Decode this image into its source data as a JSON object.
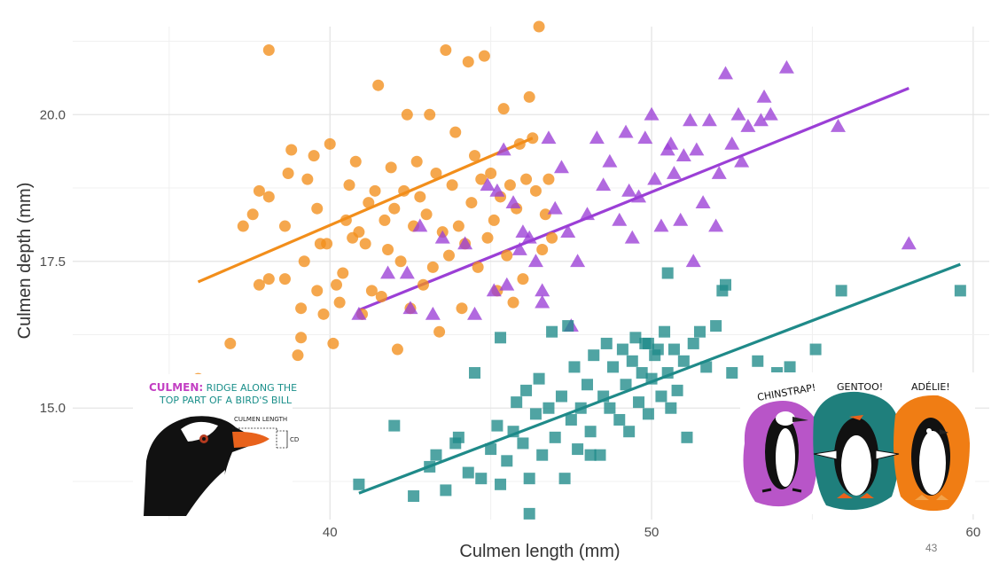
{
  "chart_data": {
    "type": "scatter",
    "xlabel": "Culmen length (mm)",
    "ylabel": "Culmen depth (mm)",
    "xlim": [
      32.0,
      60.5
    ],
    "ylim": [
      13.1,
      21.5
    ],
    "x_ticks": [
      40,
      50,
      60
    ],
    "x_tick_labels": [
      "40",
      "50",
      "60"
    ],
    "y_ticks": [
      15.0,
      17.5,
      20.0
    ],
    "y_tick_labels": [
      "15.0",
      "17.5",
      "20.0"
    ],
    "grid": true,
    "legend": "none",
    "series": [
      {
        "color": "#f28e1b",
        "marker": "circle",
        "trend": [
          [
            35.9,
            17.15
          ],
          [
            46.3,
            19.6
          ]
        ],
        "points": [
          [
            35.9,
            15.5
          ],
          [
            36.9,
            16.1
          ],
          [
            37.3,
            18.1
          ],
          [
            37.6,
            18.3
          ],
          [
            37.8,
            17.1
          ],
          [
            37.8,
            18.7
          ],
          [
            38.1,
            17.2
          ],
          [
            38.1,
            18.6
          ],
          [
            38.1,
            21.1
          ],
          [
            38.6,
            17.2
          ],
          [
            38.6,
            18.1
          ],
          [
            38.7,
            19.0
          ],
          [
            38.8,
            19.4
          ],
          [
            39.0,
            15.9
          ],
          [
            39.1,
            16.2
          ],
          [
            39.1,
            16.7
          ],
          [
            39.2,
            17.5
          ],
          [
            39.3,
            18.9
          ],
          [
            39.5,
            19.3
          ],
          [
            39.6,
            17.0
          ],
          [
            39.6,
            18.4
          ],
          [
            39.7,
            17.8
          ],
          [
            39.8,
            16.6
          ],
          [
            39.9,
            17.8
          ],
          [
            40.0,
            19.5
          ],
          [
            40.1,
            16.1
          ],
          [
            40.2,
            17.1
          ],
          [
            40.3,
            16.8
          ],
          [
            40.4,
            17.3
          ],
          [
            40.5,
            18.2
          ],
          [
            40.6,
            18.8
          ],
          [
            40.7,
            17.9
          ],
          [
            40.8,
            19.2
          ],
          [
            40.9,
            18.0
          ],
          [
            41.0,
            16.6
          ],
          [
            41.1,
            17.8
          ],
          [
            41.2,
            18.5
          ],
          [
            41.3,
            17.0
          ],
          [
            41.4,
            18.7
          ],
          [
            41.5,
            20.5
          ],
          [
            41.6,
            16.9
          ],
          [
            41.7,
            18.2
          ],
          [
            41.8,
            17.7
          ],
          [
            41.9,
            19.1
          ],
          [
            42.0,
            18.4
          ],
          [
            42.1,
            16.0
          ],
          [
            42.2,
            17.5
          ],
          [
            42.3,
            18.7
          ],
          [
            42.4,
            20.0
          ],
          [
            42.5,
            16.7
          ],
          [
            42.6,
            18.1
          ],
          [
            42.7,
            19.2
          ],
          [
            42.8,
            18.6
          ],
          [
            42.9,
            17.1
          ],
          [
            43.0,
            18.3
          ],
          [
            43.1,
            20.0
          ],
          [
            43.2,
            17.4
          ],
          [
            43.3,
            19.0
          ],
          [
            43.4,
            16.3
          ],
          [
            43.5,
            18.0
          ],
          [
            43.6,
            21.1
          ],
          [
            43.7,
            17.6
          ],
          [
            43.8,
            18.8
          ],
          [
            43.9,
            19.7
          ],
          [
            44.0,
            18.1
          ],
          [
            44.1,
            16.7
          ],
          [
            44.2,
            17.8
          ],
          [
            44.3,
            20.9
          ],
          [
            44.4,
            18.5
          ],
          [
            44.5,
            19.3
          ],
          [
            44.6,
            17.4
          ],
          [
            44.7,
            18.9
          ],
          [
            44.8,
            21.0
          ],
          [
            44.9,
            17.9
          ],
          [
            45.0,
            19.0
          ],
          [
            45.1,
            18.2
          ],
          [
            45.2,
            17.0
          ],
          [
            45.3,
            18.6
          ],
          [
            45.4,
            20.1
          ],
          [
            45.5,
            17.6
          ],
          [
            45.6,
            18.8
          ],
          [
            45.7,
            16.8
          ],
          [
            45.8,
            18.4
          ],
          [
            45.9,
            19.5
          ],
          [
            46.0,
            17.2
          ],
          [
            46.1,
            18.9
          ],
          [
            46.2,
            20.3
          ],
          [
            46.3,
            19.6
          ],
          [
            46.4,
            18.7
          ],
          [
            46.5,
            21.5
          ],
          [
            46.6,
            17.7
          ],
          [
            46.7,
            18.3
          ],
          [
            46.8,
            18.9
          ],
          [
            46.9,
            17.9
          ]
        ]
      },
      {
        "color": "#9b3fd6",
        "marker": "triangle",
        "trend": [
          [
            40.9,
            16.67
          ],
          [
            58.0,
            20.45
          ]
        ],
        "points": [
          [
            40.9,
            16.6
          ],
          [
            41.8,
            17.3
          ],
          [
            42.4,
            17.3
          ],
          [
            42.5,
            16.7
          ],
          [
            42.8,
            18.1
          ],
          [
            43.2,
            16.6
          ],
          [
            43.5,
            17.9
          ],
          [
            44.2,
            17.8
          ],
          [
            44.5,
            16.6
          ],
          [
            44.9,
            18.8
          ],
          [
            45.1,
            17.0
          ],
          [
            45.2,
            18.7
          ],
          [
            45.4,
            19.4
          ],
          [
            45.5,
            17.1
          ],
          [
            45.7,
            18.5
          ],
          [
            45.9,
            17.7
          ],
          [
            46.0,
            18.0
          ],
          [
            46.2,
            17.9
          ],
          [
            46.4,
            17.5
          ],
          [
            46.6,
            16.8
          ],
          [
            46.8,
            19.6
          ],
          [
            47.0,
            18.4
          ],
          [
            47.2,
            19.1
          ],
          [
            47.5,
            16.4
          ],
          [
            47.7,
            17.5
          ],
          [
            48.0,
            18.3
          ],
          [
            48.3,
            19.6
          ],
          [
            48.5,
            18.8
          ],
          [
            48.7,
            19.2
          ],
          [
            49.0,
            18.2
          ],
          [
            49.2,
            19.7
          ],
          [
            49.4,
            17.9
          ],
          [
            49.6,
            18.6
          ],
          [
            49.8,
            19.6
          ],
          [
            50.0,
            20.0
          ],
          [
            50.1,
            18.9
          ],
          [
            50.3,
            18.1
          ],
          [
            50.5,
            19.4
          ],
          [
            50.7,
            19.0
          ],
          [
            50.9,
            18.2
          ],
          [
            51.0,
            19.3
          ],
          [
            51.2,
            19.9
          ],
          [
            51.4,
            19.4
          ],
          [
            51.6,
            18.5
          ],
          [
            51.8,
            19.9
          ],
          [
            52.0,
            18.1
          ],
          [
            52.1,
            19.0
          ],
          [
            52.3,
            20.7
          ],
          [
            52.5,
            19.5
          ],
          [
            52.7,
            20.0
          ],
          [
            53.0,
            19.8
          ],
          [
            53.4,
            19.9
          ],
          [
            53.7,
            20.0
          ],
          [
            54.2,
            20.8
          ],
          [
            55.8,
            19.8
          ],
          [
            58.0,
            17.8
          ],
          [
            46.6,
            17.0
          ],
          [
            47.4,
            18.0
          ],
          [
            49.3,
            18.7
          ],
          [
            50.6,
            19.5
          ],
          [
            51.3,
            17.5
          ],
          [
            52.8,
            19.2
          ],
          [
            53.5,
            20.3
          ]
        ]
      },
      {
        "color": "#1f8a89",
        "marker": "square",
        "trend": [
          [
            40.9,
            13.55
          ],
          [
            59.6,
            17.45
          ]
        ],
        "points": [
          [
            40.9,
            13.7
          ],
          [
            42.0,
            14.7
          ],
          [
            42.6,
            13.5
          ],
          [
            43.1,
            14.0
          ],
          [
            43.3,
            14.2
          ],
          [
            43.6,
            13.6
          ],
          [
            43.9,
            14.4
          ],
          [
            44.0,
            14.5
          ],
          [
            44.3,
            13.9
          ],
          [
            44.5,
            15.6
          ],
          [
            44.7,
            13.8
          ],
          [
            45.0,
            14.3
          ],
          [
            45.2,
            14.7
          ],
          [
            45.3,
            16.2
          ],
          [
            45.5,
            14.1
          ],
          [
            45.7,
            14.6
          ],
          [
            45.8,
            15.1
          ],
          [
            46.0,
            14.4
          ],
          [
            46.1,
            15.3
          ],
          [
            46.2,
            13.8
          ],
          [
            46.4,
            14.9
          ],
          [
            46.5,
            15.5
          ],
          [
            46.6,
            14.2
          ],
          [
            46.8,
            15.0
          ],
          [
            46.9,
            16.3
          ],
          [
            47.0,
            14.5
          ],
          [
            47.2,
            15.2
          ],
          [
            47.3,
            13.8
          ],
          [
            47.5,
            14.8
          ],
          [
            47.6,
            15.7
          ],
          [
            47.7,
            14.3
          ],
          [
            47.8,
            15.0
          ],
          [
            48.0,
            15.4
          ],
          [
            48.1,
            14.6
          ],
          [
            48.2,
            15.9
          ],
          [
            48.4,
            14.2
          ],
          [
            48.5,
            15.2
          ],
          [
            48.6,
            16.1
          ],
          [
            48.7,
            15.0
          ],
          [
            48.8,
            15.7
          ],
          [
            49.0,
            14.8
          ],
          [
            49.1,
            16.0
          ],
          [
            49.2,
            15.4
          ],
          [
            49.3,
            14.6
          ],
          [
            49.4,
            15.8
          ],
          [
            49.5,
            16.2
          ],
          [
            49.6,
            15.1
          ],
          [
            49.7,
            15.6
          ],
          [
            49.8,
            16.1
          ],
          [
            49.9,
            14.9
          ],
          [
            50.0,
            15.5
          ],
          [
            50.1,
            15.9
          ],
          [
            50.2,
            16.0
          ],
          [
            50.3,
            15.2
          ],
          [
            50.4,
            16.3
          ],
          [
            50.5,
            15.6
          ],
          [
            50.6,
            15.0
          ],
          [
            50.7,
            16.0
          ],
          [
            50.8,
            15.3
          ],
          [
            51.0,
            15.8
          ],
          [
            51.1,
            14.5
          ],
          [
            51.3,
            16.1
          ],
          [
            51.5,
            16.3
          ],
          [
            51.7,
            15.7
          ],
          [
            52.0,
            16.4
          ],
          [
            52.2,
            17.0
          ],
          [
            52.5,
            15.6
          ],
          [
            53.3,
            15.8
          ],
          [
            53.9,
            15.6
          ],
          [
            54.3,
            15.7
          ],
          [
            55.1,
            16.0
          ],
          [
            55.9,
            17.0
          ],
          [
            59.6,
            17.0
          ],
          [
            46.2,
            13.2
          ],
          [
            45.3,
            13.7
          ],
          [
            48.1,
            14.2
          ],
          [
            47.4,
            16.4
          ],
          [
            49.9,
            16.1
          ],
          [
            50.5,
            17.3
          ],
          [
            52.3,
            17.1
          ]
        ]
      }
    ]
  },
  "culmen_callout": {
    "title": "CULMEN:",
    "line1": " RIDGE ALONG THE",
    "line2": "TOP PART OF A BIRD'S BILL",
    "length_label": "CULMEN LENGTH",
    "depth_label": "CD"
  },
  "penguin_names": {
    "chinstrap": "CHINSTRAP!",
    "gentoo": "GENTOO!",
    "adelie": "ADÉLIE!"
  },
  "page_number": "43"
}
